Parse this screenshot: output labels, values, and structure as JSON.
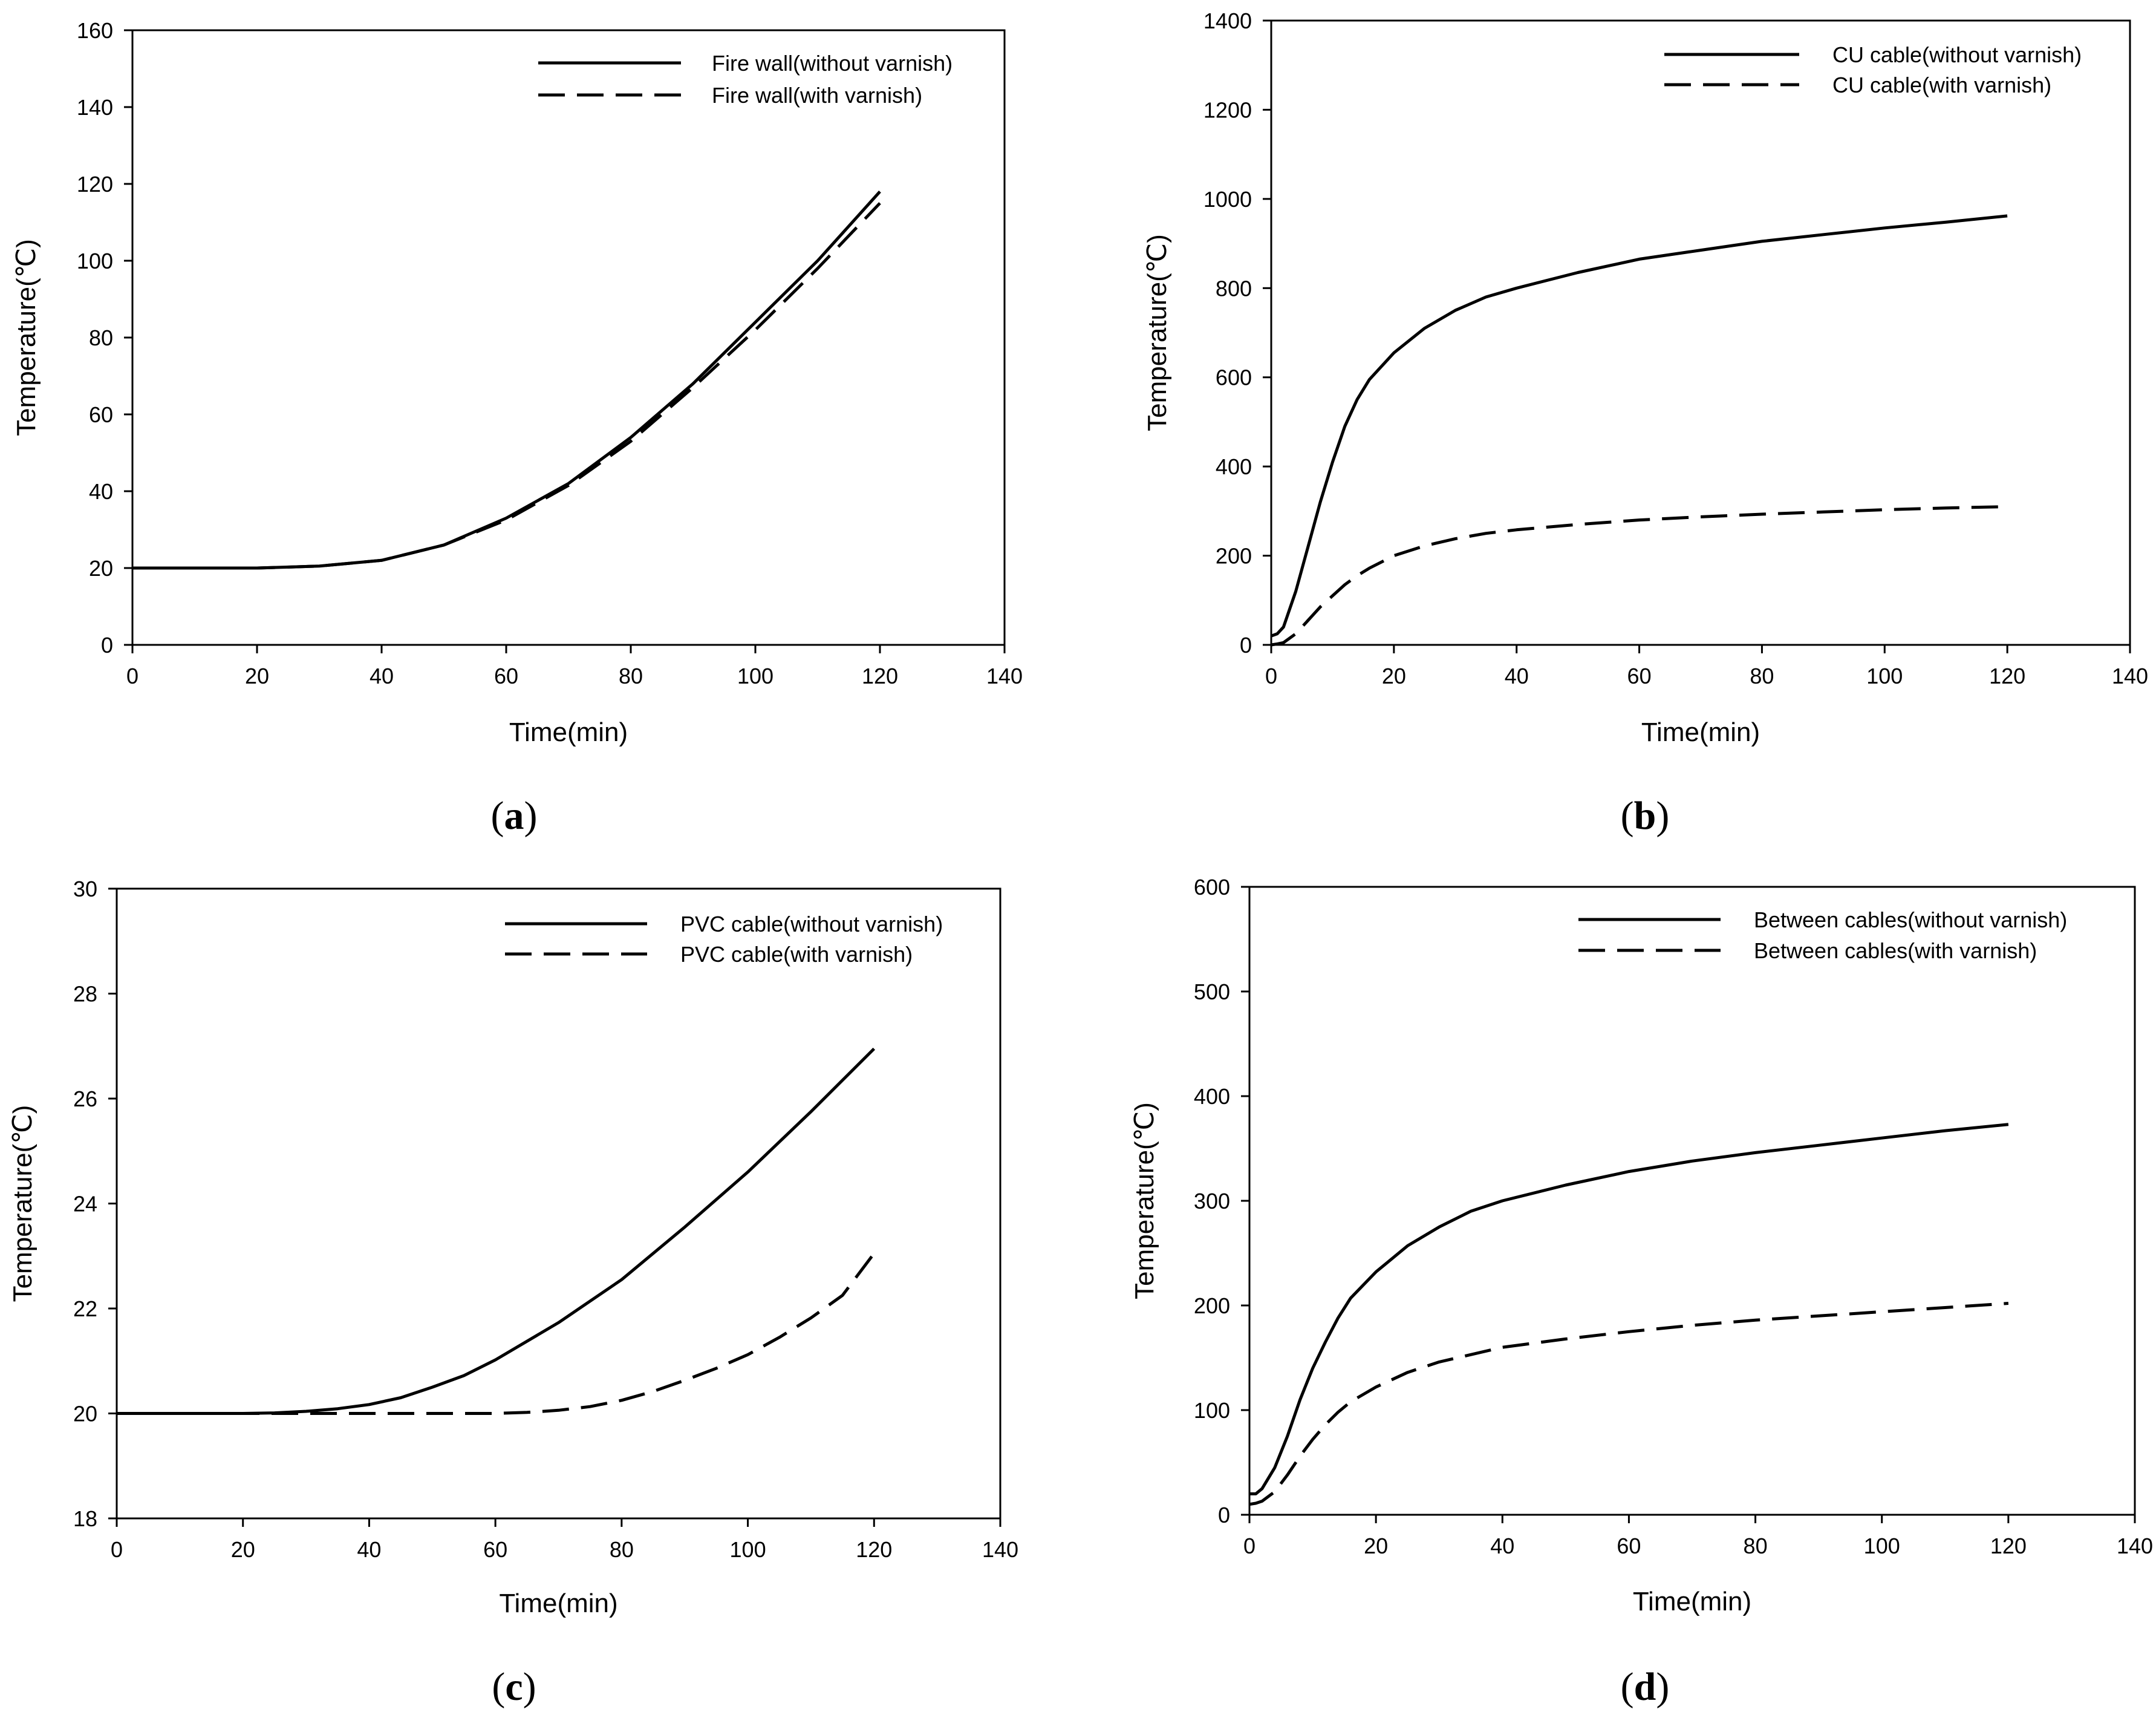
{
  "chart_data": [
    {
      "type": "line",
      "panel_label": "a",
      "xlabel": "Time(min)",
      "ylabel": "Temperature(℃)",
      "xlim": [
        0,
        140
      ],
      "ylim": [
        0,
        160
      ],
      "xticks": [
        0,
        20,
        40,
        60,
        80,
        100,
        120,
        140
      ],
      "yticks": [
        0,
        20,
        40,
        60,
        80,
        100,
        120,
        140,
        160
      ],
      "legend_position": "top-right",
      "series": [
        {
          "name": "Fire wall(without varnish)",
          "style": "solid",
          "x": [
            0,
            10,
            20,
            30,
            40,
            50,
            60,
            70,
            80,
            90,
            100,
            110,
            120
          ],
          "y": [
            20,
            20,
            20,
            20.5,
            22,
            26,
            33,
            42,
            54,
            68,
            84,
            100,
            118
          ]
        },
        {
          "name": "Fire wall(with varnish)",
          "style": "dashed",
          "x": [
            0,
            10,
            20,
            30,
            40,
            50,
            60,
            70,
            80,
            90,
            100,
            110,
            120
          ],
          "y": [
            20,
            20,
            20,
            20.5,
            22,
            26,
            32.5,
            41.5,
            53,
            67,
            82,
            98,
            115
          ]
        }
      ]
    },
    {
      "type": "line",
      "panel_label": "b",
      "xlabel": "Time(min)",
      "ylabel": "Temperature(℃)",
      "xlim": [
        0,
        140
      ],
      "ylim": [
        0,
        1400
      ],
      "xticks": [
        0,
        20,
        40,
        60,
        80,
        100,
        120,
        140
      ],
      "yticks": [
        0,
        200,
        400,
        600,
        800,
        1000,
        1200,
        1400
      ],
      "legend_position": "top-right",
      "series": [
        {
          "name": "CU cable(without varnish)",
          "style": "solid",
          "x": [
            0,
            1,
            2,
            4,
            6,
            8,
            10,
            12,
            14,
            16,
            20,
            25,
            30,
            35,
            40,
            50,
            60,
            70,
            80,
            90,
            100,
            110,
            120
          ],
          "y": [
            20,
            25,
            40,
            120,
            220,
            320,
            410,
            490,
            550,
            595,
            655,
            710,
            750,
            780,
            800,
            835,
            865,
            885,
            905,
            920,
            935,
            948,
            962
          ]
        },
        {
          "name": "CU cable(with varnish)",
          "style": "dashed",
          "x": [
            0,
            1,
            2,
            4,
            6,
            8,
            10,
            12,
            14,
            16,
            20,
            25,
            30,
            35,
            40,
            50,
            60,
            70,
            80,
            90,
            100,
            110,
            120
          ],
          "y": [
            0,
            2,
            5,
            25,
            55,
            85,
            110,
            135,
            155,
            172,
            200,
            222,
            238,
            250,
            258,
            270,
            280,
            287,
            293,
            298,
            303,
            307,
            310
          ]
        }
      ]
    },
    {
      "type": "line",
      "panel_label": "c",
      "xlabel": "Time(min)",
      "ylabel": "Temperature(℃)",
      "xlim": [
        0,
        140
      ],
      "ylim": [
        18,
        30
      ],
      "xticks": [
        0,
        20,
        40,
        60,
        80,
        100,
        120,
        140
      ],
      "yticks": [
        18,
        20,
        22,
        24,
        26,
        28,
        30
      ],
      "legend_position": "top-right",
      "series": [
        {
          "name": "PVC cable(without varnish)",
          "style": "solid",
          "x": [
            0,
            10,
            20,
            25,
            30,
            35,
            40,
            45,
            50,
            55,
            60,
            70,
            80,
            90,
            100,
            110,
            120
          ],
          "y": [
            20,
            20,
            20,
            20.01,
            20.04,
            20.09,
            20.17,
            20.3,
            20.5,
            20.72,
            21.02,
            21.73,
            22.55,
            23.55,
            24.6,
            25.75,
            26.95
          ]
        },
        {
          "name": "PVC cable(with varnish)",
          "style": "dashed",
          "x": [
            0,
            10,
            20,
            30,
            40,
            50,
            60,
            65,
            70,
            75,
            80,
            85,
            90,
            95,
            100,
            105,
            110,
            115,
            120
          ],
          "y": [
            20,
            20,
            20,
            20,
            20,
            20,
            20,
            20.02,
            20.06,
            20.13,
            20.25,
            20.42,
            20.63,
            20.86,
            21.12,
            21.45,
            21.82,
            22.25,
            23.05
          ]
        }
      ]
    },
    {
      "type": "line",
      "panel_label": "d",
      "xlabel": "Time(min)",
      "ylabel": "Temperature(℃)",
      "xlim": [
        0,
        140
      ],
      "ylim": [
        0,
        600
      ],
      "xticks": [
        0,
        20,
        40,
        60,
        80,
        100,
        120,
        140
      ],
      "yticks": [
        0,
        100,
        200,
        300,
        400,
        500,
        600
      ],
      "legend_position": "top-right",
      "series": [
        {
          "name": "Between cables(without varnish)",
          "style": "solid",
          "x": [
            0,
            1,
            2,
            4,
            6,
            8,
            10,
            12,
            14,
            16,
            20,
            25,
            30,
            35,
            40,
            50,
            60,
            70,
            80,
            90,
            100,
            110,
            120
          ],
          "y": [
            20,
            20,
            25,
            45,
            75,
            110,
            140,
            165,
            188,
            207,
            232,
            257,
            275,
            290,
            300,
            315,
            328,
            338,
            346,
            353,
            360,
            367,
            373
          ]
        },
        {
          "name": "Between cables(with varnish)",
          "style": "dashed",
          "x": [
            0,
            1,
            2,
            4,
            6,
            8,
            10,
            12,
            14,
            16,
            20,
            25,
            30,
            35,
            40,
            50,
            60,
            70,
            80,
            90,
            100,
            110,
            120
          ],
          "y": [
            10,
            11,
            13,
            22,
            38,
            56,
            72,
            86,
            98,
            108,
            122,
            136,
            146,
            153,
            160,
            168,
            175,
            181,
            186,
            190,
            194,
            198,
            202
          ]
        }
      ]
    }
  ]
}
